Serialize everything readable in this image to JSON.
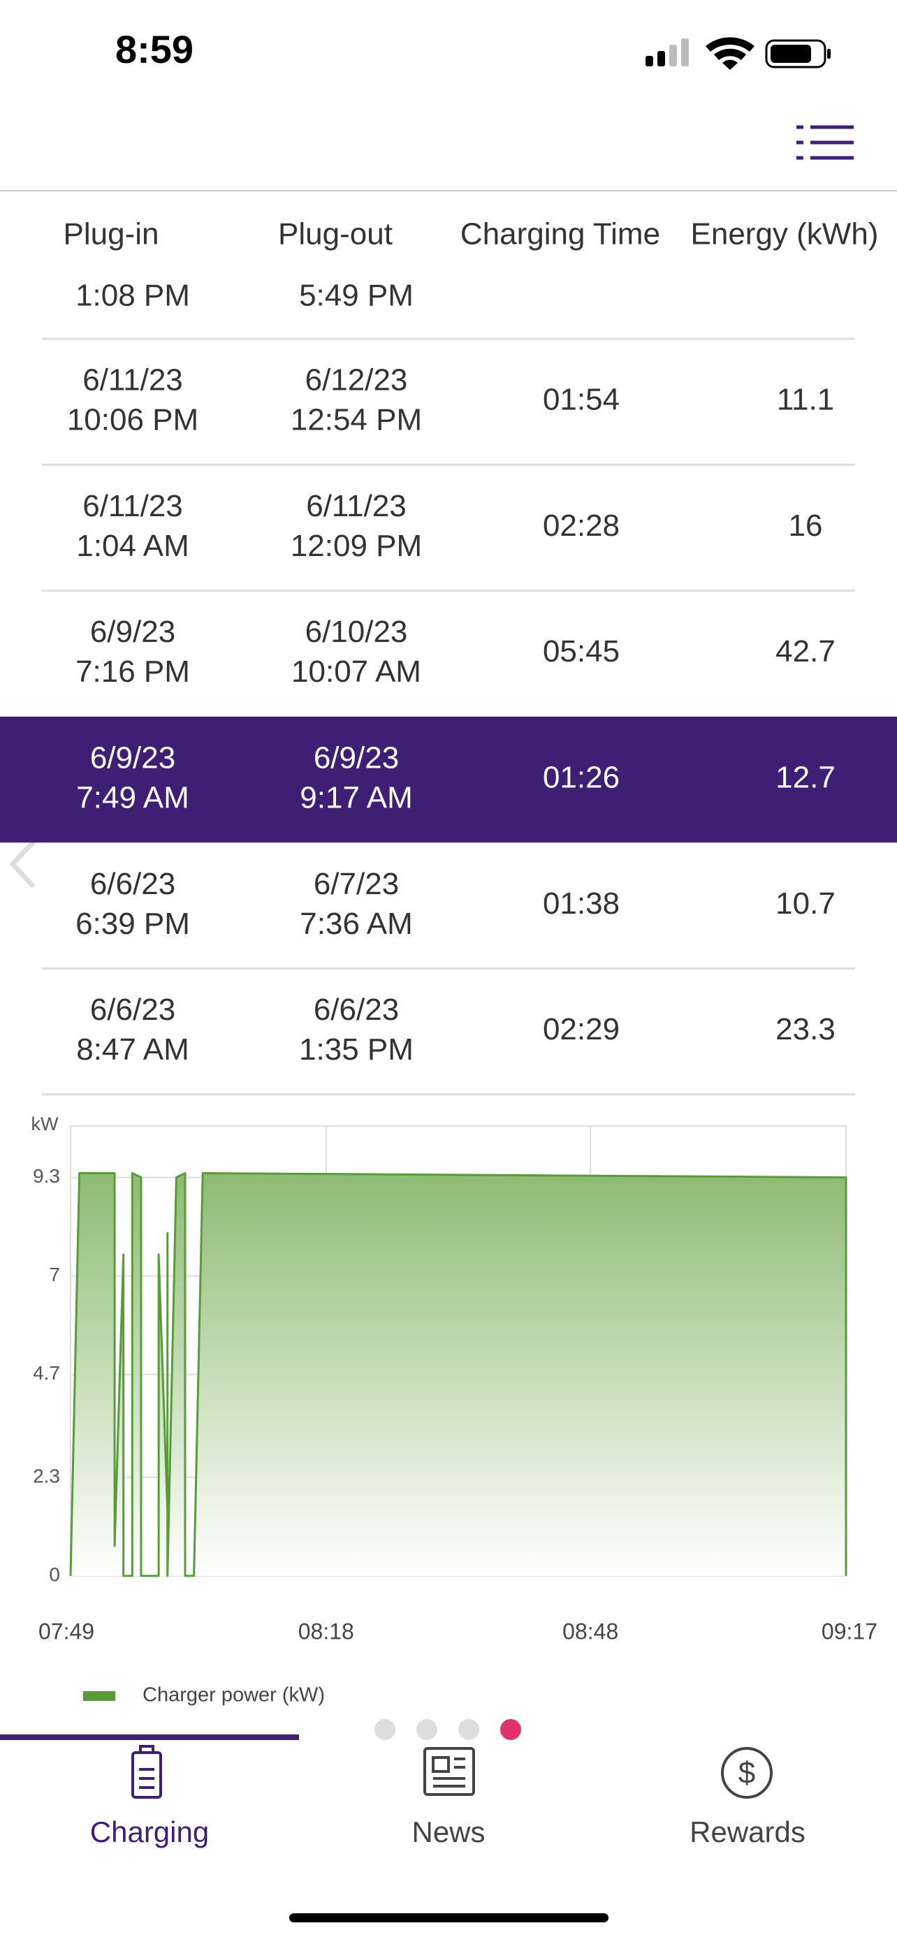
{
  "status_bar": {
    "time": "8:59"
  },
  "table": {
    "header": [
      "Plug-in",
      "Plug-out",
      "Charging Time",
      "Energy (kWh)"
    ],
    "partial_row": [
      "1:08 PM",
      "5:49 PM"
    ],
    "rows": [
      [
        [
          "6/11/23",
          "10:06 PM"
        ],
        [
          "6/12/23",
          "12:54 PM"
        ],
        "01:54",
        11.1
      ],
      [
        [
          "6/11/23",
          "1:04 AM"
        ],
        [
          "6/11/23",
          "12:09 PM"
        ],
        "02:28",
        16
      ],
      [
        [
          "6/9/23",
          "7:16 PM"
        ],
        [
          "6/10/23",
          "10:07 AM"
        ],
        "05:45",
        42.7
      ],
      [
        [
          "6/9/23",
          "7:49 AM"
        ],
        [
          "6/9/23",
          "9:17 AM"
        ],
        "01:26",
        12.7
      ],
      [
        [
          "6/6/23",
          "6:39 PM"
        ],
        [
          "6/7/23",
          "7:36 AM"
        ],
        "01:38",
        10.7
      ],
      [
        [
          "6/6/23",
          "8:47 AM"
        ],
        [
          "6/6/23",
          "1:35 PM"
        ],
        "02:29",
        23.3
      ]
    ],
    "selected_row": 3
  },
  "chart_data": {
    "type": "area",
    "y_label": "kW",
    "x": [
      "07:49",
      "07:50",
      "07:54",
      "07:54",
      "07:55",
      "07:55",
      "07:56",
      "07:56",
      "07:57",
      "07:57",
      "07:59",
      "07:59",
      "08:00",
      "08:00",
      "08:00",
      "08:01",
      "08:02",
      "08:02",
      "08:03",
      "08:04",
      "09:17",
      "09:17"
    ],
    "series": [
      {
        "name": "Charger power (kW)",
        "color": "#5a9a3a",
        "values": [
          0,
          9.4,
          9.4,
          0.7,
          7.5,
          0,
          0,
          9.4,
          9.3,
          0,
          0,
          7.5,
          1.5,
          8.0,
          0,
          9.3,
          9.4,
          0,
          0,
          9.4,
          9.3,
          0
        ]
      }
    ],
    "xlim": [
      "07:49",
      "09:17"
    ],
    "xticks": [
      "07:49",
      "08:18",
      "08:48",
      "09:17"
    ],
    "ylim": [
      0,
      10.5
    ],
    "yticks": [
      0,
      2.3,
      4.7,
      7,
      9.3
    ],
    "grid": true,
    "legend": "bottom-left"
  },
  "tabs": [
    "Charging",
    "News",
    "Rewards"
  ],
  "active_tab": 0
}
